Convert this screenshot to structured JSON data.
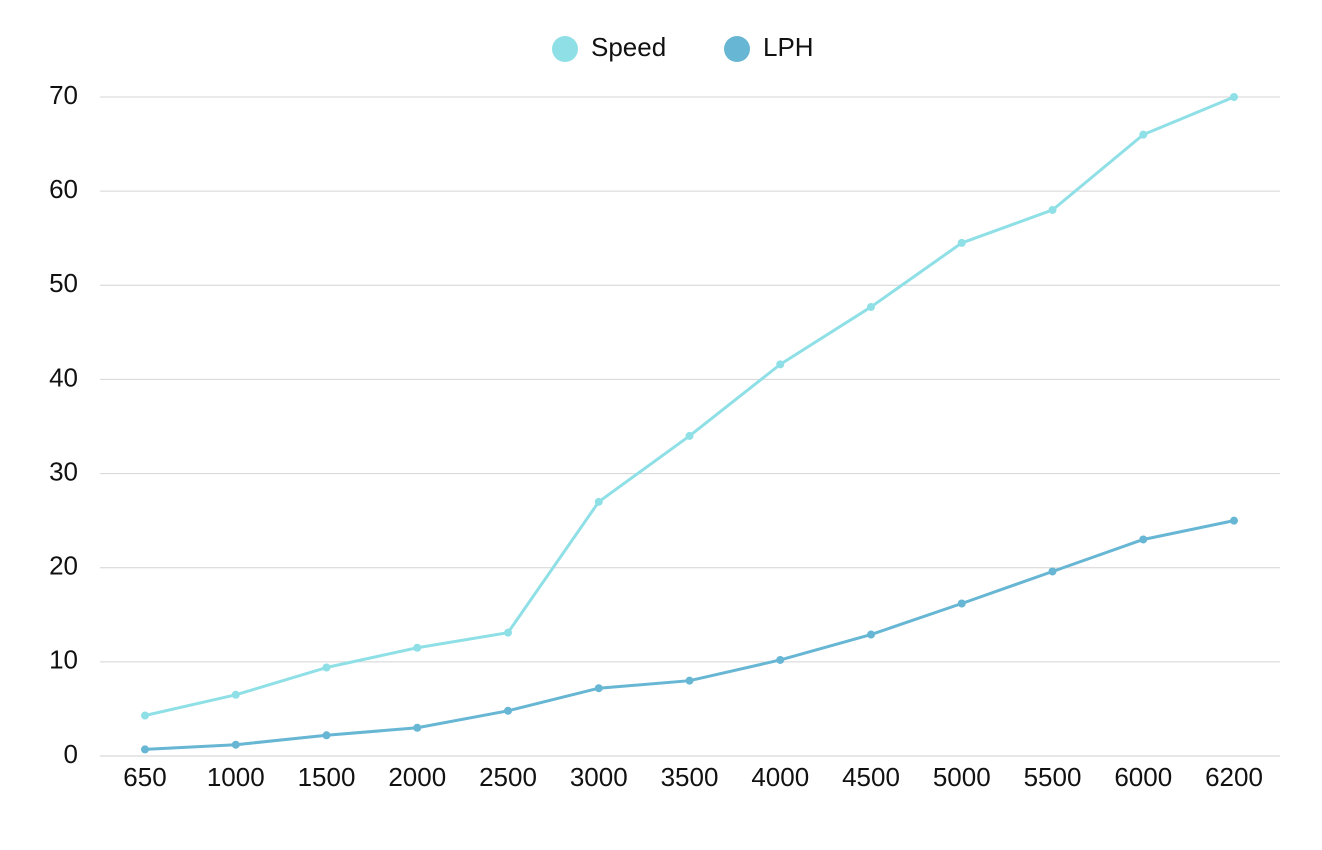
{
  "chart_data": {
    "type": "line",
    "title": "",
    "xlabel": "",
    "ylabel": "",
    "categories": [
      "650",
      "1000",
      "1500",
      "2000",
      "2500",
      "3000",
      "3500",
      "4000",
      "4500",
      "5000",
      "5500",
      "6000",
      "6200"
    ],
    "ylim": [
      0,
      70
    ],
    "yticks": [
      0,
      10,
      20,
      30,
      40,
      50,
      60,
      70
    ],
    "grid": true,
    "legend_position": "top-center",
    "series": [
      {
        "name": "Speed",
        "color": "#8fe0e6",
        "values": [
          4.3,
          6.5,
          9.4,
          11.5,
          13.1,
          27.0,
          34.0,
          41.6,
          47.7,
          54.5,
          58.0,
          66.0,
          70.0
        ]
      },
      {
        "name": "LPH",
        "color": "#66b6d4",
        "values": [
          0.7,
          1.2,
          2.2,
          3.0,
          4.8,
          7.2,
          8.0,
          10.2,
          12.9,
          16.2,
          19.6,
          23.0,
          25.0
        ]
      }
    ]
  }
}
